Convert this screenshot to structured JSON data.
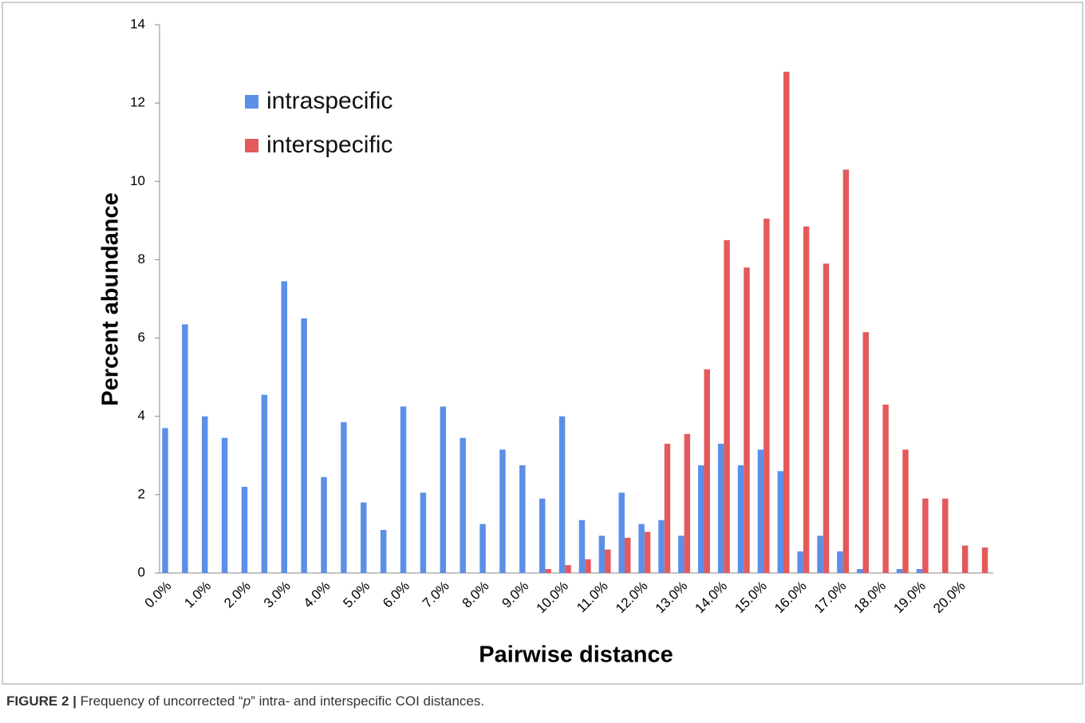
{
  "chart_data": {
    "type": "bar",
    "y_label": "Percent abundance",
    "x_label": "Pairwise distance",
    "categories": [
      "0.0%",
      null,
      "1.0%",
      null,
      "2.0%",
      null,
      "3.0%",
      null,
      "4.0%",
      null,
      "5.0%",
      null,
      "6.0%",
      null,
      "7.0%",
      null,
      "8.0%",
      null,
      "9.0%",
      null,
      "10.0%",
      null,
      "11.0%",
      null,
      "12.0%",
      null,
      "13.0%",
      null,
      "14.0%",
      null,
      "15.0%",
      null,
      "16.0%",
      null,
      "17.0%",
      null,
      "18.0%",
      null,
      "19.0%",
      null,
      "20.0%",
      null
    ],
    "series": [
      {
        "name": "intraspecific",
        "color": "#5b8fe8",
        "values": [
          3.7,
          6.35,
          4.0,
          3.45,
          2.2,
          4.55,
          7.45,
          6.5,
          2.45,
          3.85,
          1.8,
          1.1,
          4.25,
          2.05,
          4.25,
          3.45,
          1.25,
          3.15,
          2.75,
          1.9,
          4.0,
          1.35,
          0.95,
          2.05,
          1.25,
          1.35,
          0.95,
          2.75,
          3.3,
          2.75,
          3.15,
          2.6,
          0.55,
          0.95,
          0.55,
          0.1,
          0,
          0.1,
          0.1,
          0,
          0,
          0
        ]
      },
      {
        "name": "interspecific",
        "color": "#e45a5c",
        "values": [
          0,
          0,
          0,
          0,
          0,
          0,
          0,
          0,
          0,
          0,
          0,
          0,
          0,
          0,
          0,
          0,
          0,
          0,
          0,
          0.1,
          0.2,
          0.35,
          0.6,
          0.9,
          1.05,
          3.3,
          3.55,
          5.2,
          8.5,
          7.8,
          9.05,
          12.8,
          8.85,
          7.9,
          10.3,
          6.15,
          4.3,
          3.15,
          1.9,
          1.9,
          0.7,
          0.65
        ]
      }
    ],
    "ylim": [
      0,
      14
    ],
    "yticks": [
      0,
      2,
      4,
      6,
      8,
      10,
      12,
      14
    ],
    "legend": "upper left"
  },
  "caption": {
    "label": "FIGURE 2 |",
    "before": " Frequency of uncorrected “",
    "italic": "p",
    "after": "” intra- and interspecific COI distances."
  }
}
